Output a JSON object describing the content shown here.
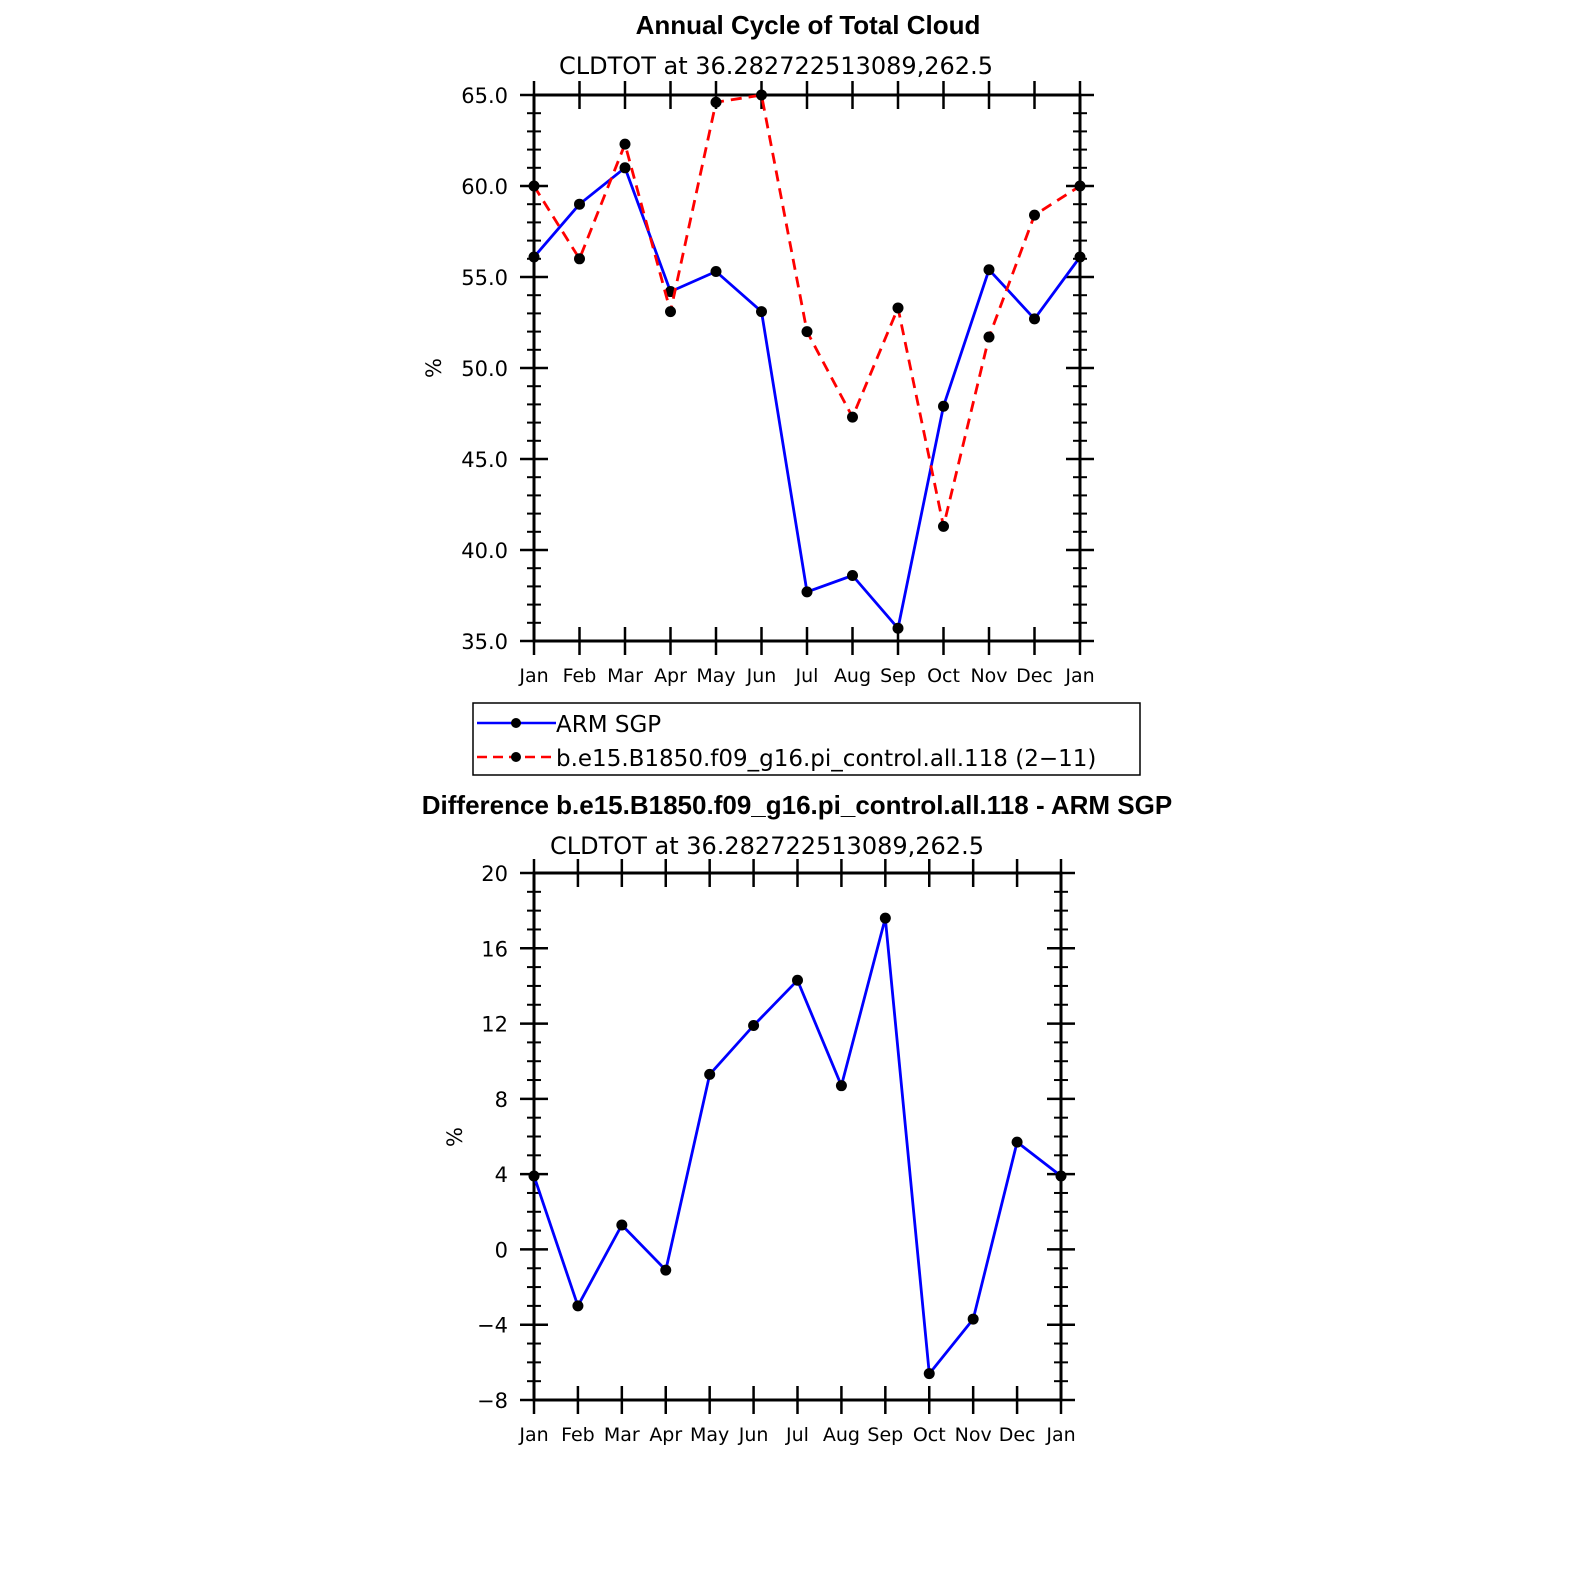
{
  "chart_data": [
    {
      "type": "line",
      "title": "Annual Cycle of Total Cloud",
      "subtitle": "CLDTOT at 36.282722513089,262.5",
      "ylabel": "%",
      "ylim": [
        35,
        65
      ],
      "yticks": [
        "35.0",
        "40.0",
        "45.0",
        "50.0",
        "55.0",
        "60.0",
        "65.0"
      ],
      "categories": [
        "Jan",
        "Feb",
        "Mar",
        "Apr",
        "May",
        "Jun",
        "Jul",
        "Aug",
        "Sep",
        "Oct",
        "Nov",
        "Dec",
        "Jan"
      ],
      "series": [
        {
          "name": "ARM SGP",
          "color": "#0000ff",
          "style": "solid",
          "values": [
            56.1,
            59.0,
            61.0,
            54.2,
            55.3,
            53.1,
            37.7,
            38.6,
            35.7,
            47.9,
            55.4,
            52.7,
            56.1
          ]
        },
        {
          "name": "b.e15.B1850.f09_g16.pi_control.all.118 (2−11)",
          "color": "#ff0000",
          "style": "dashed",
          "values": [
            60.0,
            56.0,
            62.3,
            53.1,
            64.6,
            65.0,
            52.0,
            47.3,
            53.3,
            41.3,
            51.7,
            58.4,
            60.0
          ]
        }
      ]
    },
    {
      "type": "line",
      "title": "Difference b.e15.B1850.f09_g16.pi_control.all.118 - ARM SGP",
      "subtitle": "CLDTOT at 36.282722513089,262.5",
      "ylabel": "%",
      "ylim": [
        -8,
        20
      ],
      "yticks": [
        "−8",
        "−4",
        "0",
        "4",
        "8",
        "12",
        "16",
        "20"
      ],
      "categories": [
        "Jan",
        "Feb",
        "Mar",
        "Apr",
        "May",
        "Jun",
        "Jul",
        "Aug",
        "Sep",
        "Oct",
        "Nov",
        "Dec",
        "Jan"
      ],
      "series": [
        {
          "name": "Difference",
          "color": "#0000ff",
          "style": "solid",
          "values": [
            3.9,
            -3.0,
            1.3,
            -1.1,
            9.3,
            11.9,
            14.3,
            8.7,
            17.6,
            -6.6,
            -3.7,
            5.7,
            3.9
          ]
        }
      ]
    }
  ]
}
